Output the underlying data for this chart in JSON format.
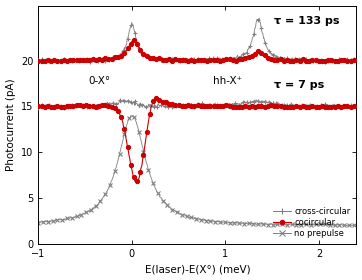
{
  "xlim": [
    -1,
    2.4
  ],
  "ylim": [
    0,
    26
  ],
  "xlabel": "E(laser)-E(X°) (meV)",
  "ylabel": "Photocurrent (pA)",
  "tau133_text": "τ = 133 ps",
  "tau7_text": "τ = 7 ps",
  "label0X0": "0-X°",
  "labelhhX": "hh-X⁺",
  "legend_labels": [
    "cross-circular",
    "cocircular",
    "no prepulse"
  ],
  "cross_color": "#808080",
  "cocirc_color": "#cc0000",
  "nopre_color": "#808080",
  "background": "#ffffff",
  "xticks": [
    -1,
    0,
    1,
    2
  ],
  "yticks": [
    0,
    5,
    10,
    15,
    20
  ]
}
